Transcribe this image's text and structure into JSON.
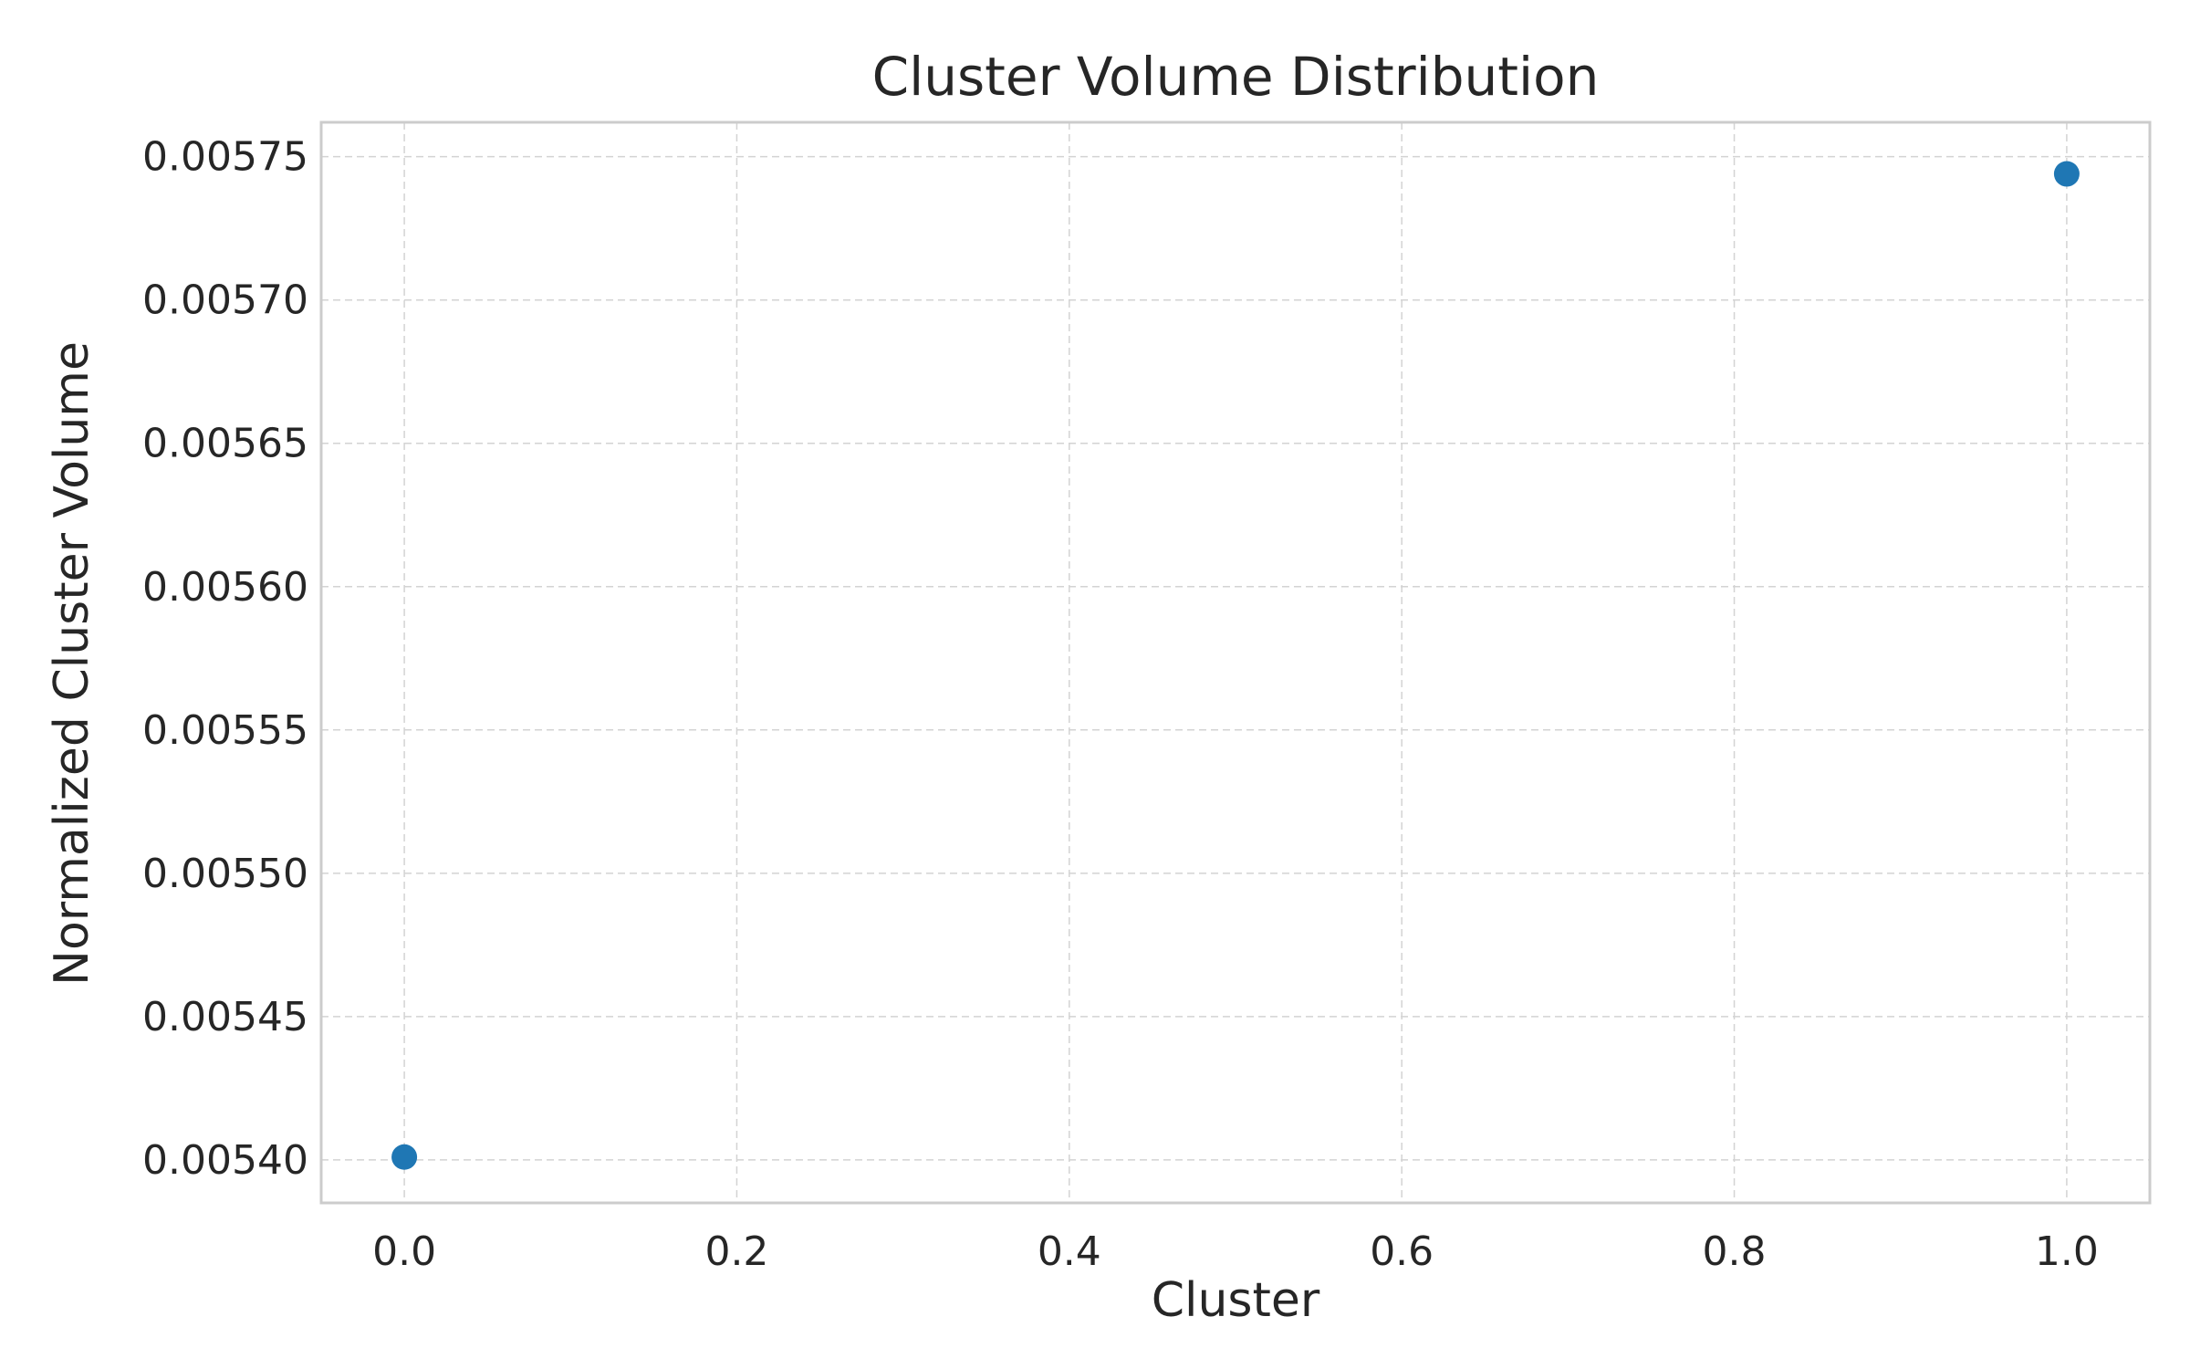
{
  "chart_data": {
    "type": "scatter",
    "title": "Cluster Volume Distribution",
    "xlabel": "Cluster",
    "ylabel": "Normalized Cluster Volume",
    "xlim": [
      -0.05,
      1.05
    ],
    "ylim": [
      0.005385,
      0.005762
    ],
    "x_ticks": [
      0.0,
      0.2,
      0.4,
      0.6,
      0.8,
      1.0
    ],
    "x_tick_labels": [
      "0.0",
      "0.2",
      "0.4",
      "0.6",
      "0.8",
      "1.0"
    ],
    "y_ticks": [
      0.0054,
      0.00545,
      0.0055,
      0.00555,
      0.0056,
      0.00565,
      0.0057,
      0.00575
    ],
    "y_tick_labels": [
      "0.00540",
      "0.00545",
      "0.00550",
      "0.00555",
      "0.00560",
      "0.00565",
      "0.00570",
      "0.00575"
    ],
    "grid": true,
    "marker_color": "#1f77b4",
    "points": [
      {
        "x": 0.0,
        "y": 0.005401
      },
      {
        "x": 1.0,
        "y": 0.005744
      }
    ]
  }
}
